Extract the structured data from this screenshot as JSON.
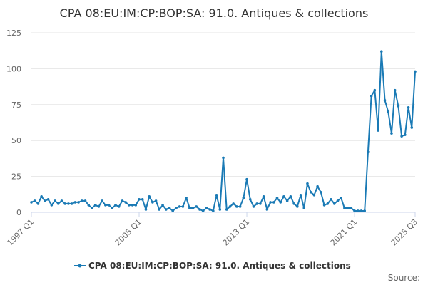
{
  "chart_data": {
    "type": "line",
    "title": "CPA 08:EU:IM:CP:BOP:SA: 91.0. Antiques & collections",
    "xlabel": "",
    "ylabel": "",
    "ylim": [
      0,
      125
    ],
    "yticks": [
      "0",
      "25",
      "50",
      "75",
      "100",
      "125"
    ],
    "x_tick_labels": [
      "1997 Q1",
      "2005 Q1",
      "2013 Q1",
      "2021 Q1",
      "2025 Q3"
    ],
    "grid": true,
    "legend_position": "bottom-center",
    "color": "#1a7ab5",
    "categories": [
      "1997 Q1",
      "1997 Q2",
      "1997 Q3",
      "1997 Q4",
      "1998 Q1",
      "1998 Q2",
      "1998 Q3",
      "1998 Q4",
      "1999 Q1",
      "1999 Q2",
      "1999 Q3",
      "1999 Q4",
      "2000 Q1",
      "2000 Q2",
      "2000 Q3",
      "2000 Q4",
      "2001 Q1",
      "2001 Q2",
      "2001 Q3",
      "2001 Q4",
      "2002 Q1",
      "2002 Q2",
      "2002 Q3",
      "2002 Q4",
      "2003 Q1",
      "2003 Q2",
      "2003 Q3",
      "2003 Q4",
      "2004 Q1",
      "2004 Q2",
      "2004 Q3",
      "2004 Q4",
      "2005 Q1",
      "2005 Q2",
      "2005 Q3",
      "2005 Q4",
      "2006 Q1",
      "2006 Q2",
      "2006 Q3",
      "2006 Q4",
      "2007 Q1",
      "2007 Q2",
      "2007 Q3",
      "2007 Q4",
      "2008 Q1",
      "2008 Q2",
      "2008 Q3",
      "2008 Q4",
      "2009 Q1",
      "2009 Q2",
      "2009 Q3",
      "2009 Q4",
      "2010 Q1",
      "2010 Q2",
      "2010 Q3",
      "2010 Q4",
      "2011 Q1",
      "2011 Q2",
      "2011 Q3",
      "2011 Q4",
      "2012 Q1",
      "2012 Q2",
      "2012 Q3",
      "2012 Q4",
      "2013 Q1",
      "2013 Q2",
      "2013 Q3",
      "2013 Q4",
      "2014 Q1",
      "2014 Q2",
      "2014 Q3",
      "2014 Q4",
      "2015 Q1",
      "2015 Q2",
      "2015 Q3",
      "2015 Q4",
      "2016 Q1",
      "2016 Q2",
      "2016 Q3",
      "2016 Q4",
      "2017 Q1",
      "2017 Q2",
      "2017 Q3",
      "2017 Q4",
      "2018 Q1",
      "2018 Q2",
      "2018 Q3",
      "2018 Q4",
      "2019 Q1",
      "2019 Q2",
      "2019 Q3",
      "2019 Q4",
      "2020 Q1",
      "2020 Q2",
      "2020 Q3",
      "2020 Q4",
      "2021 Q1",
      "2021 Q2",
      "2021 Q3",
      "2021 Q4",
      "2022 Q1",
      "2022 Q2",
      "2022 Q3",
      "2022 Q4",
      "2023 Q1",
      "2023 Q2",
      "2023 Q3",
      "2023 Q4",
      "2024 Q1",
      "2024 Q2",
      "2024 Q3",
      "2024 Q4",
      "2025 Q1",
      "2025 Q2",
      "2025 Q3"
    ],
    "series": [
      {
        "name": "CPA 08:EU:IM:CP:BOP:SA: 91.0. Antiques & collections",
        "values": [
          7,
          8,
          6,
          11,
          8,
          9,
          5,
          8,
          6,
          8,
          6,
          6,
          6,
          7,
          7,
          8,
          8,
          5,
          3,
          5,
          4,
          8,
          5,
          5,
          3,
          5,
          4,
          8,
          7,
          5,
          5,
          5,
          9,
          9,
          2,
          11,
          7,
          8,
          2,
          5,
          2,
          3,
          1,
          3,
          4,
          4,
          10,
          3,
          3,
          4,
          2,
          1,
          3,
          2,
          1,
          12,
          2,
          38,
          2,
          4,
          6,
          4,
          4,
          10,
          23,
          9,
          4,
          6,
          6,
          11,
          2,
          7,
          7,
          10,
          7,
          11,
          8,
          11,
          6,
          4,
          12,
          3,
          20,
          14,
          12,
          18,
          14,
          5,
          6,
          9,
          6,
          8,
          10,
          3,
          3,
          3,
          1,
          1,
          1,
          1,
          42,
          81,
          85,
          57,
          112,
          78,
          70,
          55,
          85,
          74,
          53,
          54,
          73,
          59,
          98
        ]
      }
    ]
  },
  "legend_label": "CPA 08:EU:IM:CP:BOP:SA: 91.0. Antiques & collections",
  "source_label": "Source:"
}
